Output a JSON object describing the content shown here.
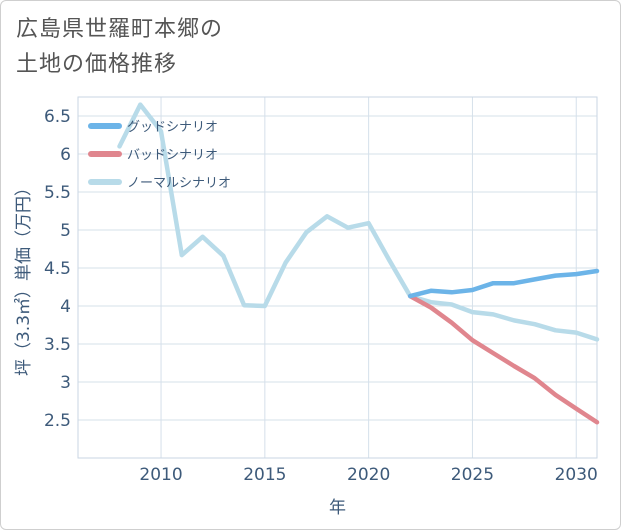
{
  "title_lines": [
    "広島県世羅町本郷の",
    "土地の価格推移"
  ],
  "chart_data": {
    "type": "line",
    "xlabel": "年",
    "ylabel": "坪（3.3㎡）単価（万円）",
    "xlim": [
      2006,
      2031
    ],
    "ylim": [
      2.0,
      6.75
    ],
    "xticks": [
      2010,
      2015,
      2020,
      2025,
      2030
    ],
    "yticks": [
      2.5,
      3,
      3.5,
      4,
      4.5,
      5,
      5.5,
      6,
      6.5
    ],
    "ytick_labels": [
      "2.5",
      "3",
      "3.5",
      "4",
      "4.5",
      "5",
      "5.5",
      "6",
      "6.5"
    ],
    "grid": true,
    "legend_position": "top-left",
    "series": [
      {
        "name": "グッドシナリオ",
        "color": "#6cb4e8",
        "x": [
          2022,
          2023,
          2024,
          2025,
          2026,
          2027,
          2028,
          2029,
          2030,
          2031
        ],
        "values": [
          4.13,
          4.2,
          4.18,
          4.21,
          4.3,
          4.3,
          4.35,
          4.4,
          4.42,
          4.46
        ]
      },
      {
        "name": "バッドシナリオ",
        "color": "#e0868e",
        "x": [
          2022,
          2023,
          2024,
          2025,
          2026,
          2027,
          2028,
          2029,
          2030,
          2031
        ],
        "values": [
          4.13,
          3.98,
          3.78,
          3.55,
          3.38,
          3.21,
          3.05,
          2.83,
          2.65,
          2.47
        ]
      },
      {
        "name": "ノーマルシナリオ",
        "color": "#b8dbe9",
        "x": [
          2008,
          2009,
          2010,
          2011,
          2012,
          2013,
          2014,
          2015,
          2016,
          2017,
          2018,
          2019,
          2020,
          2021,
          2022,
          2023,
          2024,
          2025,
          2026,
          2027,
          2028,
          2029,
          2030,
          2031
        ],
        "values": [
          6.1,
          6.65,
          6.3,
          4.67,
          4.91,
          4.66,
          4.01,
          4.0,
          4.57,
          4.97,
          5.18,
          5.03,
          5.09,
          4.6,
          4.13,
          4.05,
          4.02,
          3.92,
          3.89,
          3.81,
          3.76,
          3.68,
          3.65,
          3.56
        ]
      }
    ]
  }
}
